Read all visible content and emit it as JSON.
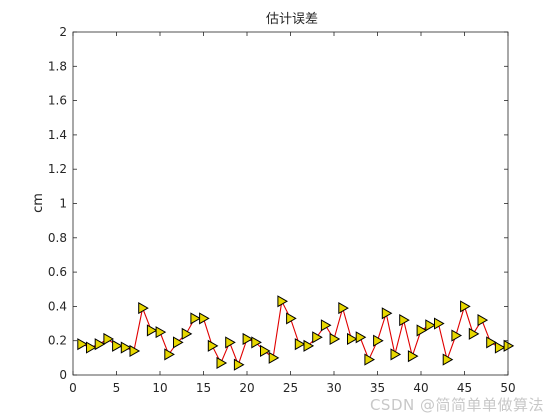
{
  "chart_data": {
    "type": "line",
    "title": "估计误差",
    "xlabel": "",
    "ylabel": "cm",
    "xlim": [
      0,
      50
    ],
    "ylim": [
      0,
      2
    ],
    "xticks": [
      0,
      5,
      10,
      15,
      20,
      25,
      30,
      35,
      40,
      45,
      50
    ],
    "yticks": [
      0,
      0.2,
      0.4,
      0.6,
      0.8,
      1,
      1.2,
      1.4,
      1.6,
      1.8,
      2
    ],
    "grid": false,
    "line_color": "#e00000",
    "marker": "triangle-right",
    "marker_face_color": "#e8d800",
    "marker_edge_color": "#000000",
    "series": [
      {
        "x": [
          1,
          2,
          3,
          4,
          5,
          6,
          7,
          8,
          9,
          10,
          11,
          12,
          13,
          14,
          15,
          16,
          17,
          18,
          19,
          20,
          21,
          22,
          23,
          24,
          25,
          26,
          27,
          28,
          29,
          30,
          31,
          32,
          33,
          34,
          35,
          36,
          37,
          38,
          39,
          40,
          41,
          42,
          43,
          44,
          45,
          46,
          47,
          48,
          49,
          50
        ],
        "values": [
          0.18,
          0.16,
          0.18,
          0.21,
          0.17,
          0.16,
          0.14,
          0.39,
          0.26,
          0.25,
          0.12,
          0.19,
          0.24,
          0.33,
          0.33,
          0.17,
          0.07,
          0.19,
          0.06,
          0.21,
          0.19,
          0.14,
          0.1,
          0.43,
          0.33,
          0.18,
          0.17,
          0.22,
          0.29,
          0.21,
          0.39,
          0.21,
          0.22,
          0.09,
          0.2,
          0.36,
          0.12,
          0.32,
          0.11,
          0.26,
          0.29,
          0.3,
          0.09,
          0.23,
          0.4,
          0.24,
          0.32,
          0.19,
          0.16,
          0.17
        ]
      }
    ]
  },
  "watermark": "CSDN @简简单单做算法"
}
